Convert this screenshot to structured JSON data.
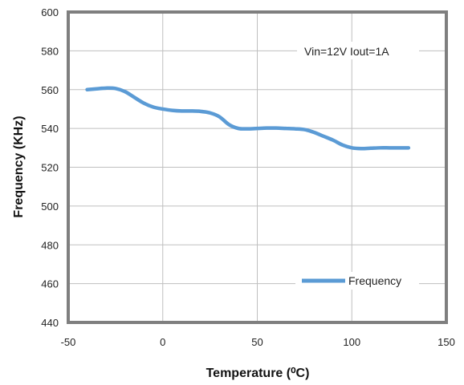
{
  "chart_data": {
    "type": "line",
    "title": "",
    "xlabel": "Temperature (⁰C)",
    "ylabel": "Frequency (KHz)",
    "xlim": [
      -50,
      150
    ],
    "ylim": [
      440,
      600
    ],
    "xticks": [
      -50,
      0,
      50,
      100,
      150
    ],
    "yticks": [
      440,
      460,
      480,
      500,
      520,
      540,
      560,
      580,
      600
    ],
    "grid": true,
    "legend_position": "bottom-right",
    "annotation": "Vin=12V Iout=1A",
    "series": [
      {
        "name": "Frequency",
        "color": "#5b9bd5",
        "x": [
          -40,
          -35,
          -30,
          -25,
          -20,
          -15,
          -10,
          -5,
          0,
          5,
          10,
          15,
          20,
          25,
          30,
          35,
          40,
          45,
          50,
          55,
          60,
          65,
          70,
          75,
          80,
          85,
          90,
          95,
          100,
          105,
          110,
          115,
          120,
          125,
          130
        ],
        "y": [
          560,
          560.4,
          560.8,
          560.6,
          559,
          556,
          553,
          551,
          550,
          549.3,
          549,
          549,
          548.8,
          548,
          546,
          542,
          540,
          539.8,
          540,
          540.2,
          540.2,
          540,
          539.8,
          539.4,
          538,
          536,
          534,
          531.5,
          530,
          529.6,
          529.8,
          530,
          530,
          530,
          530
        ]
      }
    ]
  }
}
